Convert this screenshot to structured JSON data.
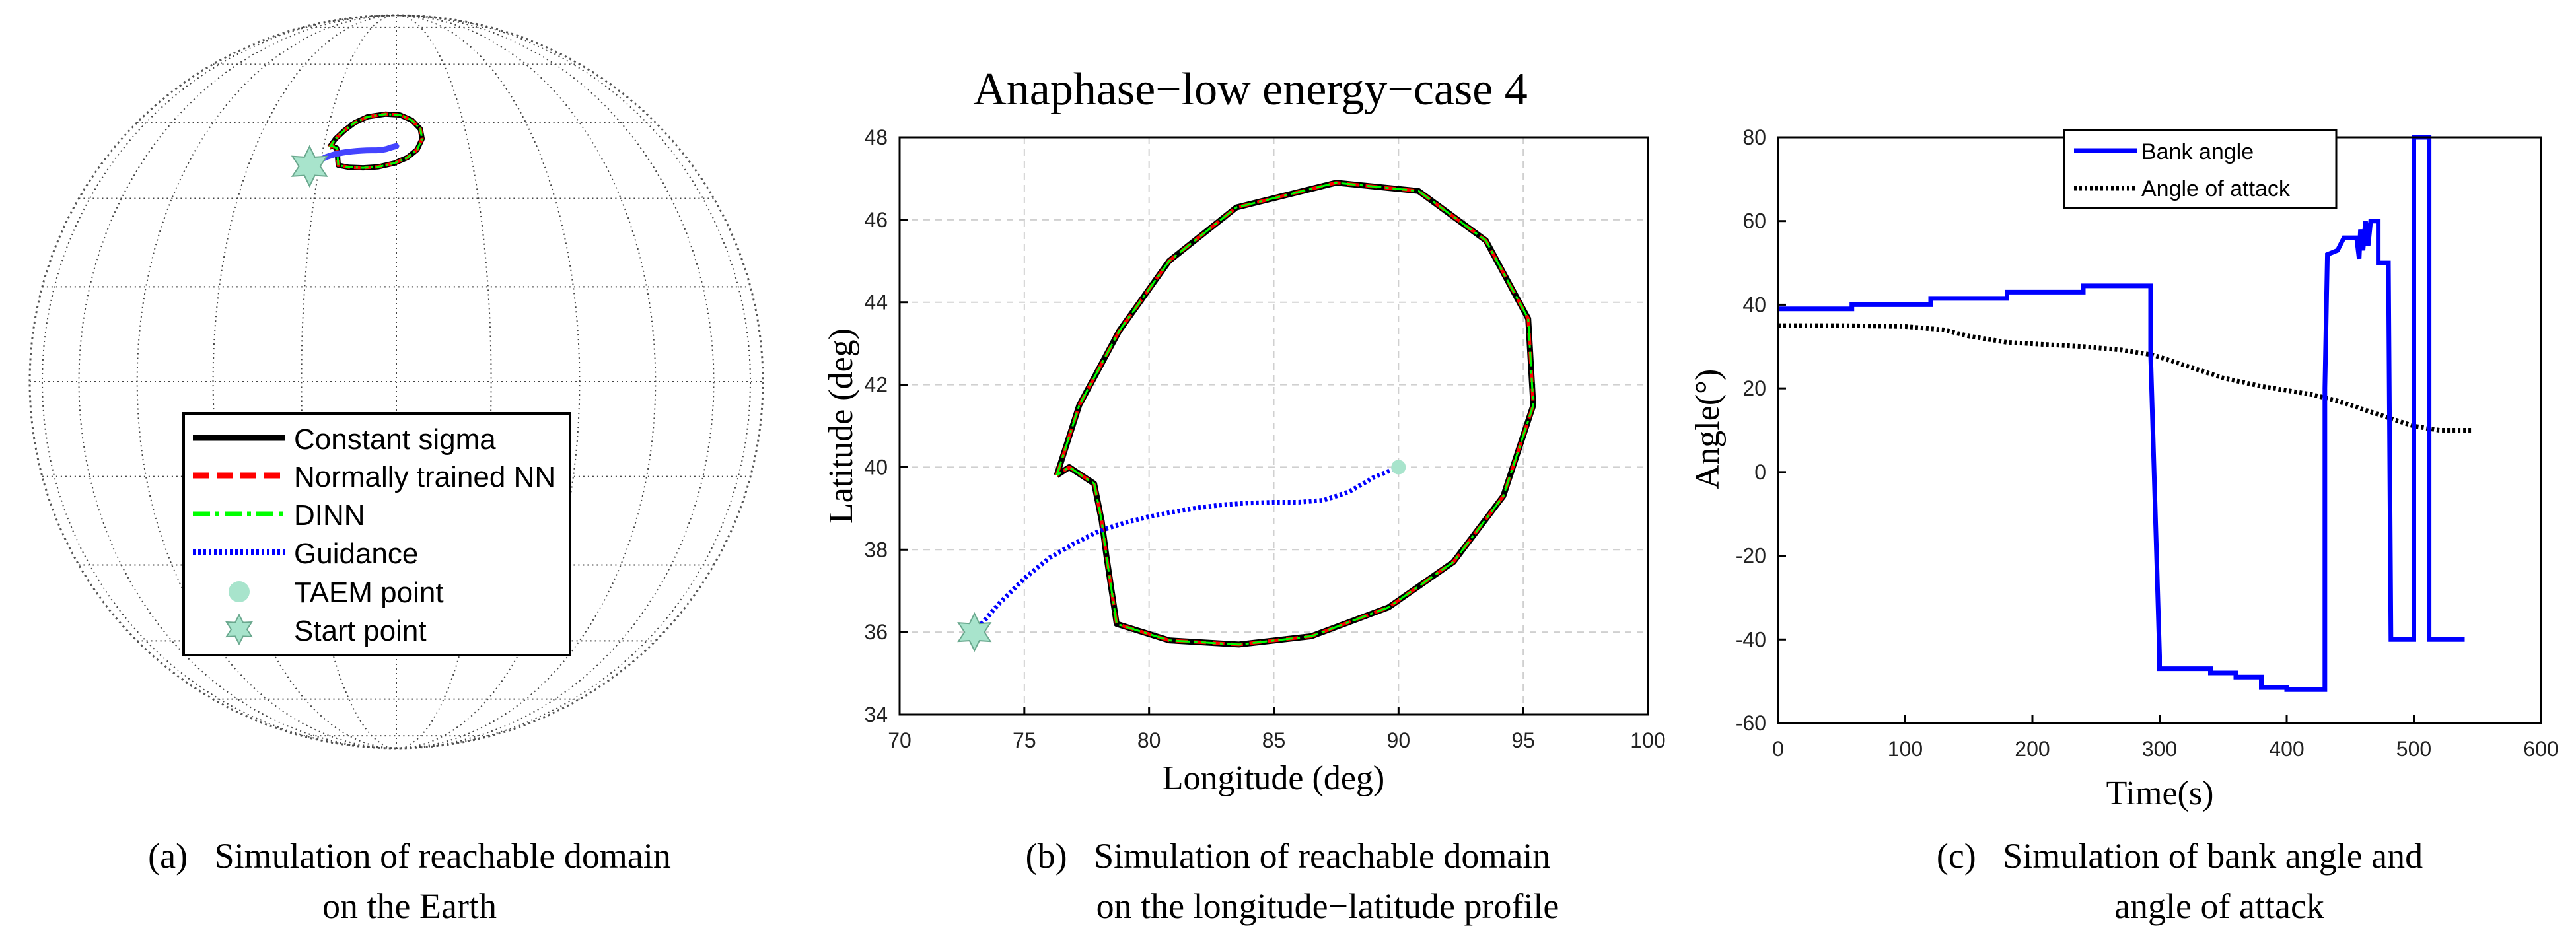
{
  "colors": {
    "constant_sigma": "#000000",
    "normally_trained_nn": "#ff0000",
    "dinn": "#00ff00",
    "guidance": "#0000ff",
    "taem_point": "#a8e4cc",
    "start_point": "#a8e4cc",
    "bank_angle": "#0000ff",
    "angle_of_attack": "#000000"
  },
  "captions": {
    "a": {
      "label": "(a)",
      "line1": "Simulation of reachable domain",
      "line2": "on the Earth"
    },
    "b": {
      "label": "(b)",
      "line1": "Simulation of reachable domain",
      "line2": "on the longitude−latitude profile"
    },
    "c": {
      "label": "(c)",
      "line1": "Simulation of bank angle and",
      "line2": "angle of attack"
    }
  },
  "chart_data": [
    {
      "type": "line",
      "panel": "a",
      "title": "",
      "projection": "orthographic globe (lon 90, lat 0 centre)",
      "legend": {
        "placement": "lower-center",
        "entries": [
          "Constant sigma",
          "Normally trained NN",
          "DINN",
          "Guidance",
          "TAEM point",
          "Start point"
        ]
      },
      "series": [
        {
          "name": "Constant sigma",
          "style": "solid",
          "lonlat_ref": "b.reachable_boundary"
        },
        {
          "name": "Normally trained NN",
          "style": "dashed",
          "lonlat_ref": "b.reachable_boundary"
        },
        {
          "name": "DINN",
          "style": "dash-dot",
          "lonlat_ref": "b.reachable_boundary"
        },
        {
          "name": "Guidance",
          "style": "dotted",
          "lonlat_ref": "b.guidance"
        }
      ],
      "points": [
        {
          "name": "TAEM point",
          "lon": 90,
          "lat": 40
        },
        {
          "name": "Start point",
          "lon": 73,
          "lat": 36
        }
      ]
    },
    {
      "type": "line",
      "panel": "b",
      "title": "Anaphase−low energy−case 4",
      "xlabel": "Longitude (deg)",
      "ylabel": "Latitude (deg)",
      "xlim": [
        70,
        100
      ],
      "ylim": [
        34,
        48
      ],
      "xticks": [
        70,
        75,
        80,
        85,
        90,
        95,
        100
      ],
      "yticks": [
        34,
        36,
        38,
        40,
        42,
        44,
        46,
        48
      ],
      "grid": true,
      "reachable_boundary": {
        "x": [
          76.3,
          77.2,
          78.8,
          80.8,
          83.5,
          87.5,
          90.8,
          93.5,
          95.2,
          95.4,
          94.2,
          92.2,
          89.6,
          86.5,
          83.6,
          80.8,
          78.7,
          78.5,
          78.3,
          78.1,
          77.8,
          76.8,
          76.3
        ],
        "y": [
          39.8,
          41.5,
          43.3,
          45.0,
          46.3,
          46.9,
          46.7,
          45.5,
          43.6,
          41.5,
          39.3,
          37.7,
          36.6,
          35.9,
          35.7,
          35.8,
          36.2,
          37.0,
          37.8,
          38.7,
          39.6,
          40.0,
          39.8
        ]
      },
      "series": [
        {
          "name": "Constant sigma",
          "style": "solid"
        },
        {
          "name": "Normally trained NN",
          "style": "dashed"
        },
        {
          "name": "DINN",
          "style": "dash-dot"
        }
      ],
      "guidance": {
        "name": "Guidance",
        "x": [
          73,
          74,
          75,
          76,
          77,
          78,
          79,
          80,
          81,
          82,
          83,
          84,
          85,
          86,
          87,
          88,
          89,
          90
        ],
        "y": [
          36.0,
          36.7,
          37.3,
          37.8,
          38.15,
          38.45,
          38.65,
          38.8,
          38.92,
          39.02,
          39.09,
          39.13,
          39.15,
          39.15,
          39.2,
          39.4,
          39.75,
          40.0
        ]
      },
      "points": [
        {
          "name": "TAEM point",
          "x": 90,
          "y": 40
        },
        {
          "name": "Start point",
          "x": 73,
          "y": 36
        }
      ]
    },
    {
      "type": "line",
      "panel": "c",
      "title": "",
      "xlabel": "Time(s)",
      "ylabel": "Angle(°)",
      "xlim": [
        0,
        600
      ],
      "ylim": [
        -60,
        80
      ],
      "xticks": [
        0,
        100,
        200,
        300,
        400,
        500,
        600
      ],
      "yticks": [
        -60,
        -40,
        -20,
        0,
        20,
        40,
        60,
        80
      ],
      "grid": false,
      "legend": {
        "placement": "top-center",
        "entries": [
          "Bank angle",
          "Angle of attack"
        ]
      },
      "series": [
        {
          "name": "Bank angle",
          "style": "solid",
          "x": [
            0,
            58,
            58,
            120,
            120,
            180,
            180,
            240,
            240,
            293,
            293,
            300,
            300,
            340,
            340,
            360,
            360,
            380,
            380,
            400,
            400,
            430,
            430,
            432,
            432,
            440,
            440,
            445,
            445,
            455,
            457,
            458,
            460,
            462,
            464,
            466,
            466,
            472,
            472,
            480,
            480,
            482,
            482,
            500,
            500,
            503,
            503,
            512,
            512,
            520,
            520,
            540
          ],
          "y": [
            39,
            39,
            40,
            40,
            41.5,
            41.5,
            43,
            43,
            44.5,
            44.5,
            28,
            -44,
            -47,
            -47,
            -48,
            -48,
            -49,
            -49,
            -51.5,
            -51.5,
            -52,
            -52,
            20,
            52,
            52,
            53,
            53,
            56,
            56,
            56,
            51,
            58,
            53,
            60,
            54,
            60,
            60,
            60,
            50,
            50,
            50,
            -40,
            -40,
            -40,
            80,
            80,
            80,
            80,
            -40,
            -40,
            -40,
            -40
          ]
        },
        {
          "name": "Angle of attack",
          "style": "dotted",
          "x": [
            0,
            50,
            100,
            130,
            150,
            180,
            210,
            240,
            270,
            295,
            320,
            350,
            380,
            420,
            440,
            470,
            500,
            520,
            545
          ],
          "y": [
            35,
            35,
            34.8,
            34,
            32.5,
            31,
            30.5,
            30,
            29.2,
            28,
            25.5,
            22.5,
            20.5,
            18.5,
            17,
            14,
            11,
            10,
            10
          ]
        }
      ]
    }
  ]
}
